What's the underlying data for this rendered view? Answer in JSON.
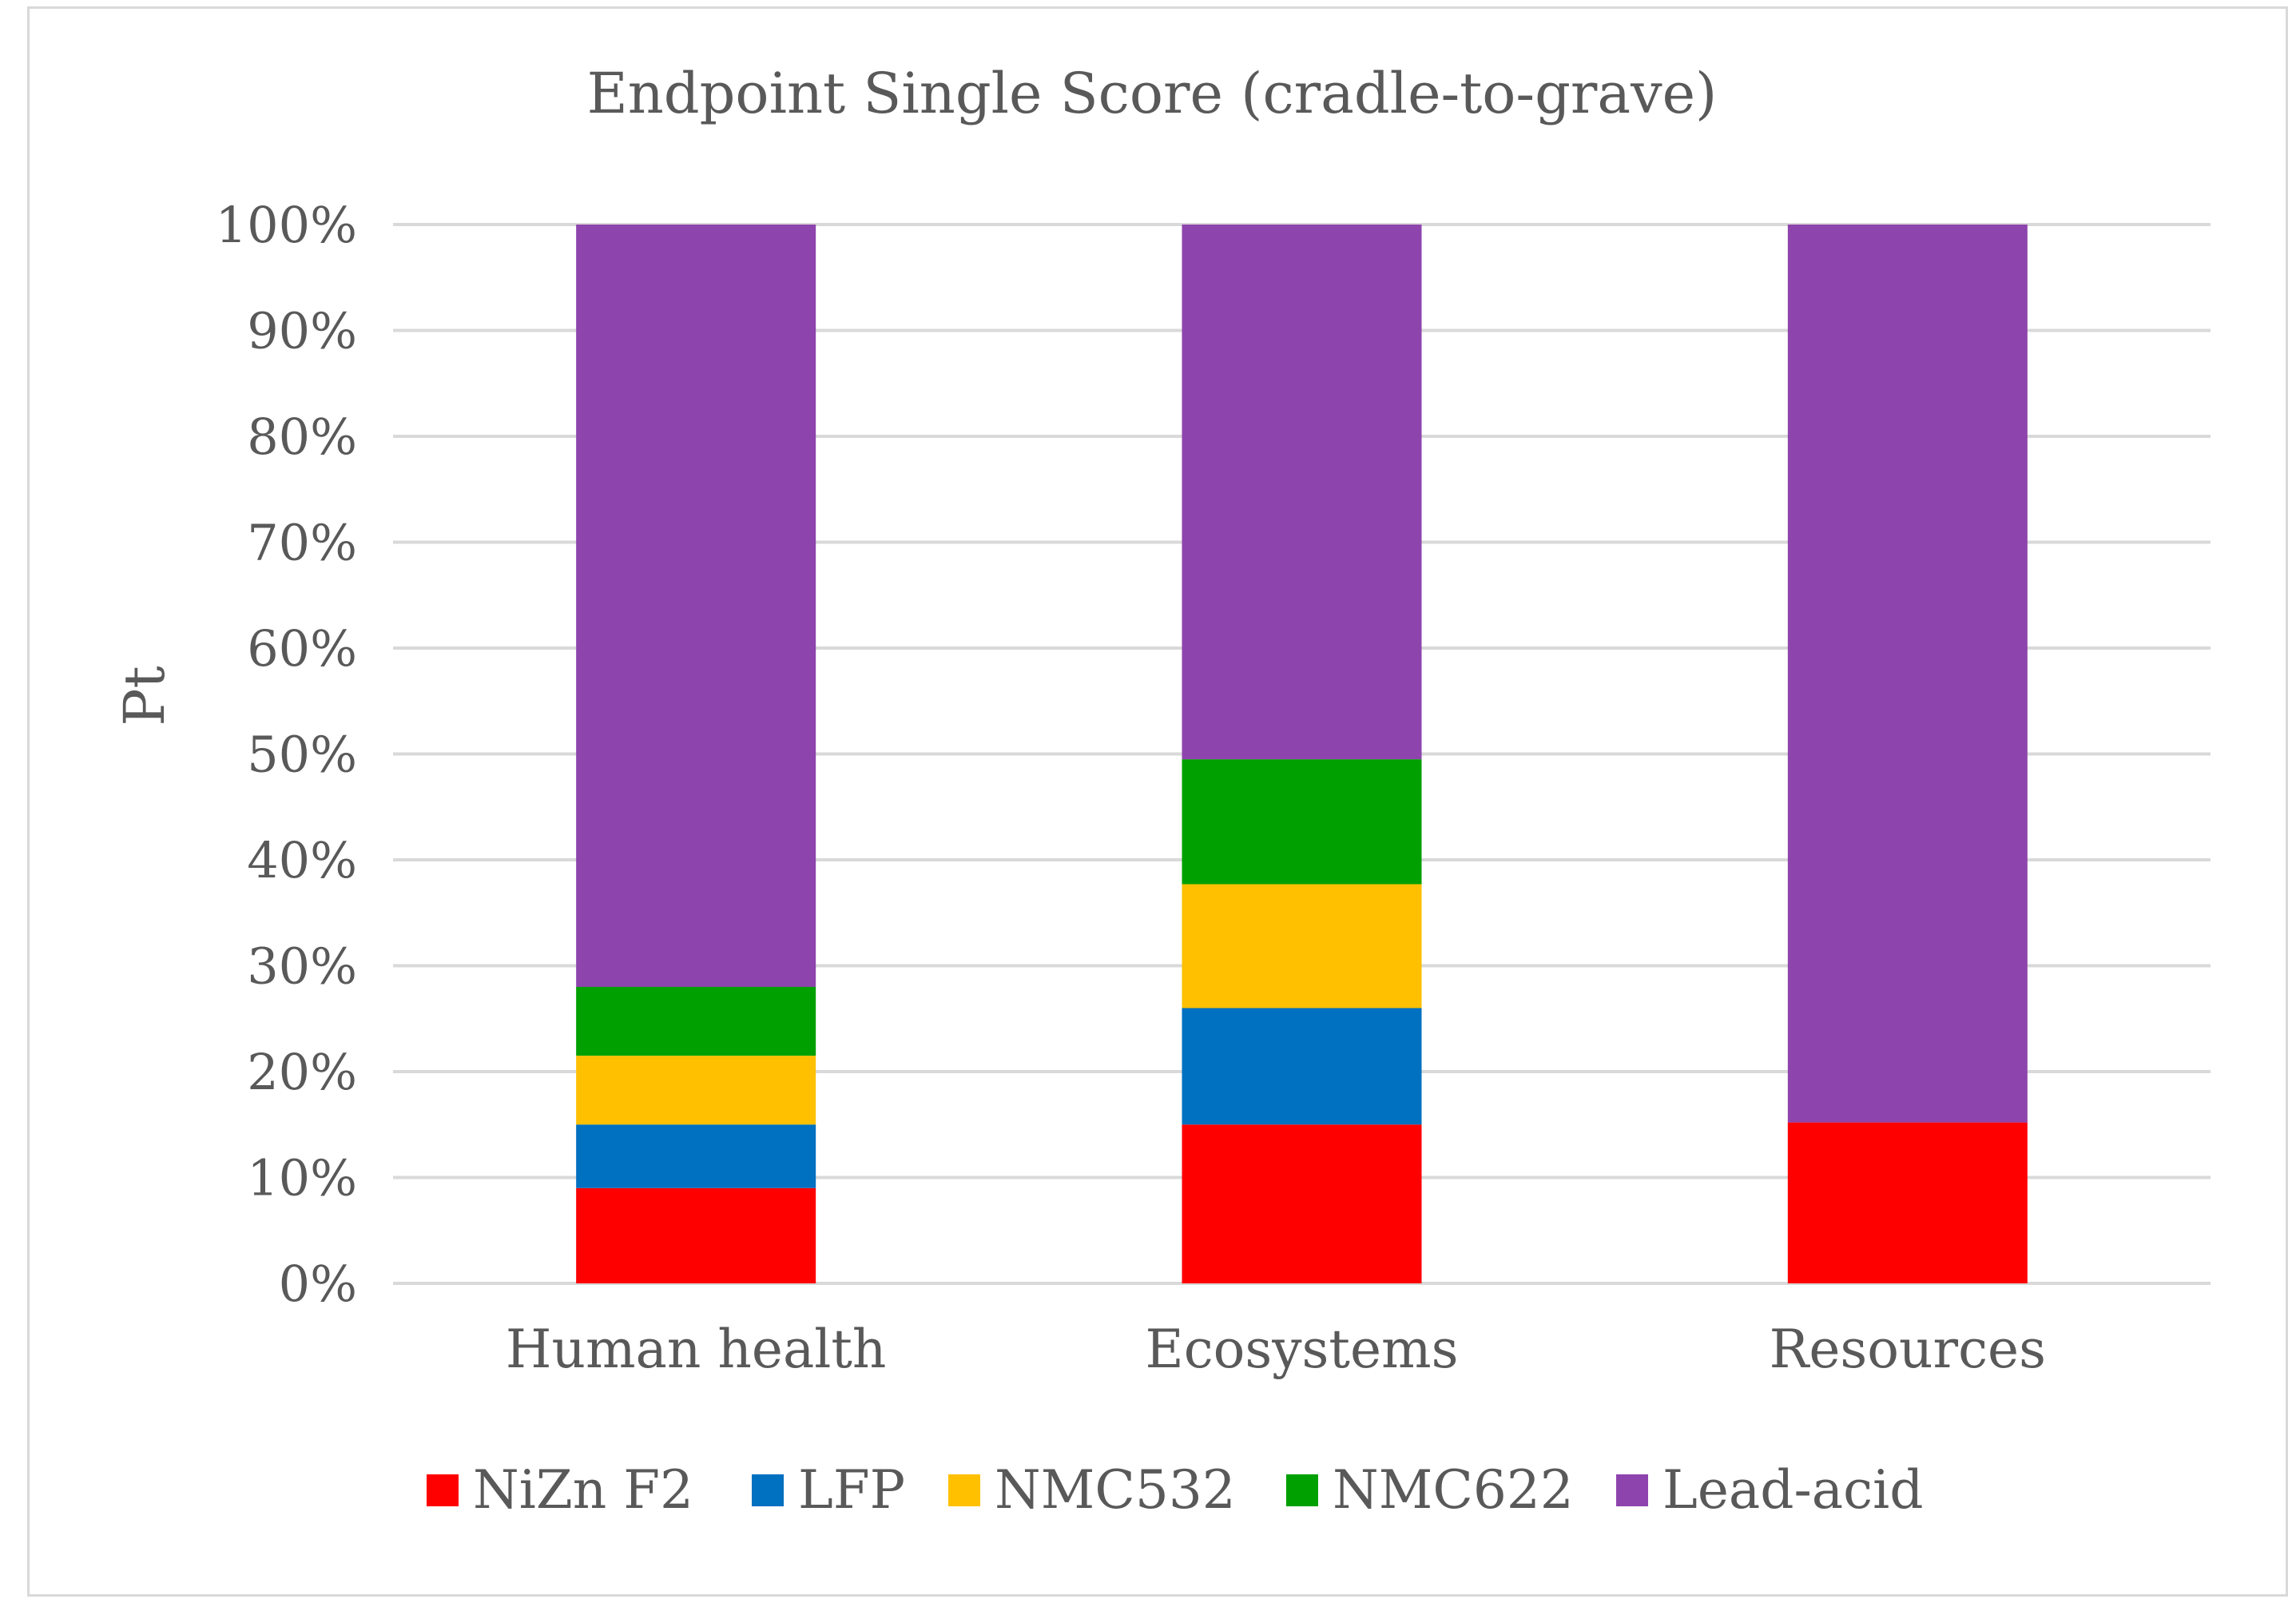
{
  "chart_data": {
    "type": "bar",
    "stacked": true,
    "title": "Endpoint Single Score (cradle-to-grave)",
    "xlabel": "",
    "ylabel": "Pt",
    "ylim": [
      0,
      100
    ],
    "y_ticks": [
      "0%",
      "10%",
      "20%",
      "30%",
      "40%",
      "50%",
      "60%",
      "70%",
      "80%",
      "90%",
      "100%"
    ],
    "grid": true,
    "legend_position": "bottom",
    "categories": [
      "Human health",
      "Ecosystems",
      "Resources"
    ],
    "series": [
      {
        "name": "NiZn F2",
        "color": "#ff0000",
        "values": [
          9,
          15,
          15.2
        ]
      },
      {
        "name": "LFP",
        "color": "#0070c0",
        "values": [
          6,
          11,
          0
        ]
      },
      {
        "name": "NMC532",
        "color": "#ffc000",
        "values": [
          6.5,
          11.7,
          0
        ]
      },
      {
        "name": "NMC622",
        "color": "#00a000",
        "values": [
          6.5,
          11.8,
          0
        ]
      },
      {
        "name": "Lead-acid",
        "color": "#8e44ad",
        "values": [
          72,
          50.5,
          84.8
        ]
      }
    ]
  }
}
